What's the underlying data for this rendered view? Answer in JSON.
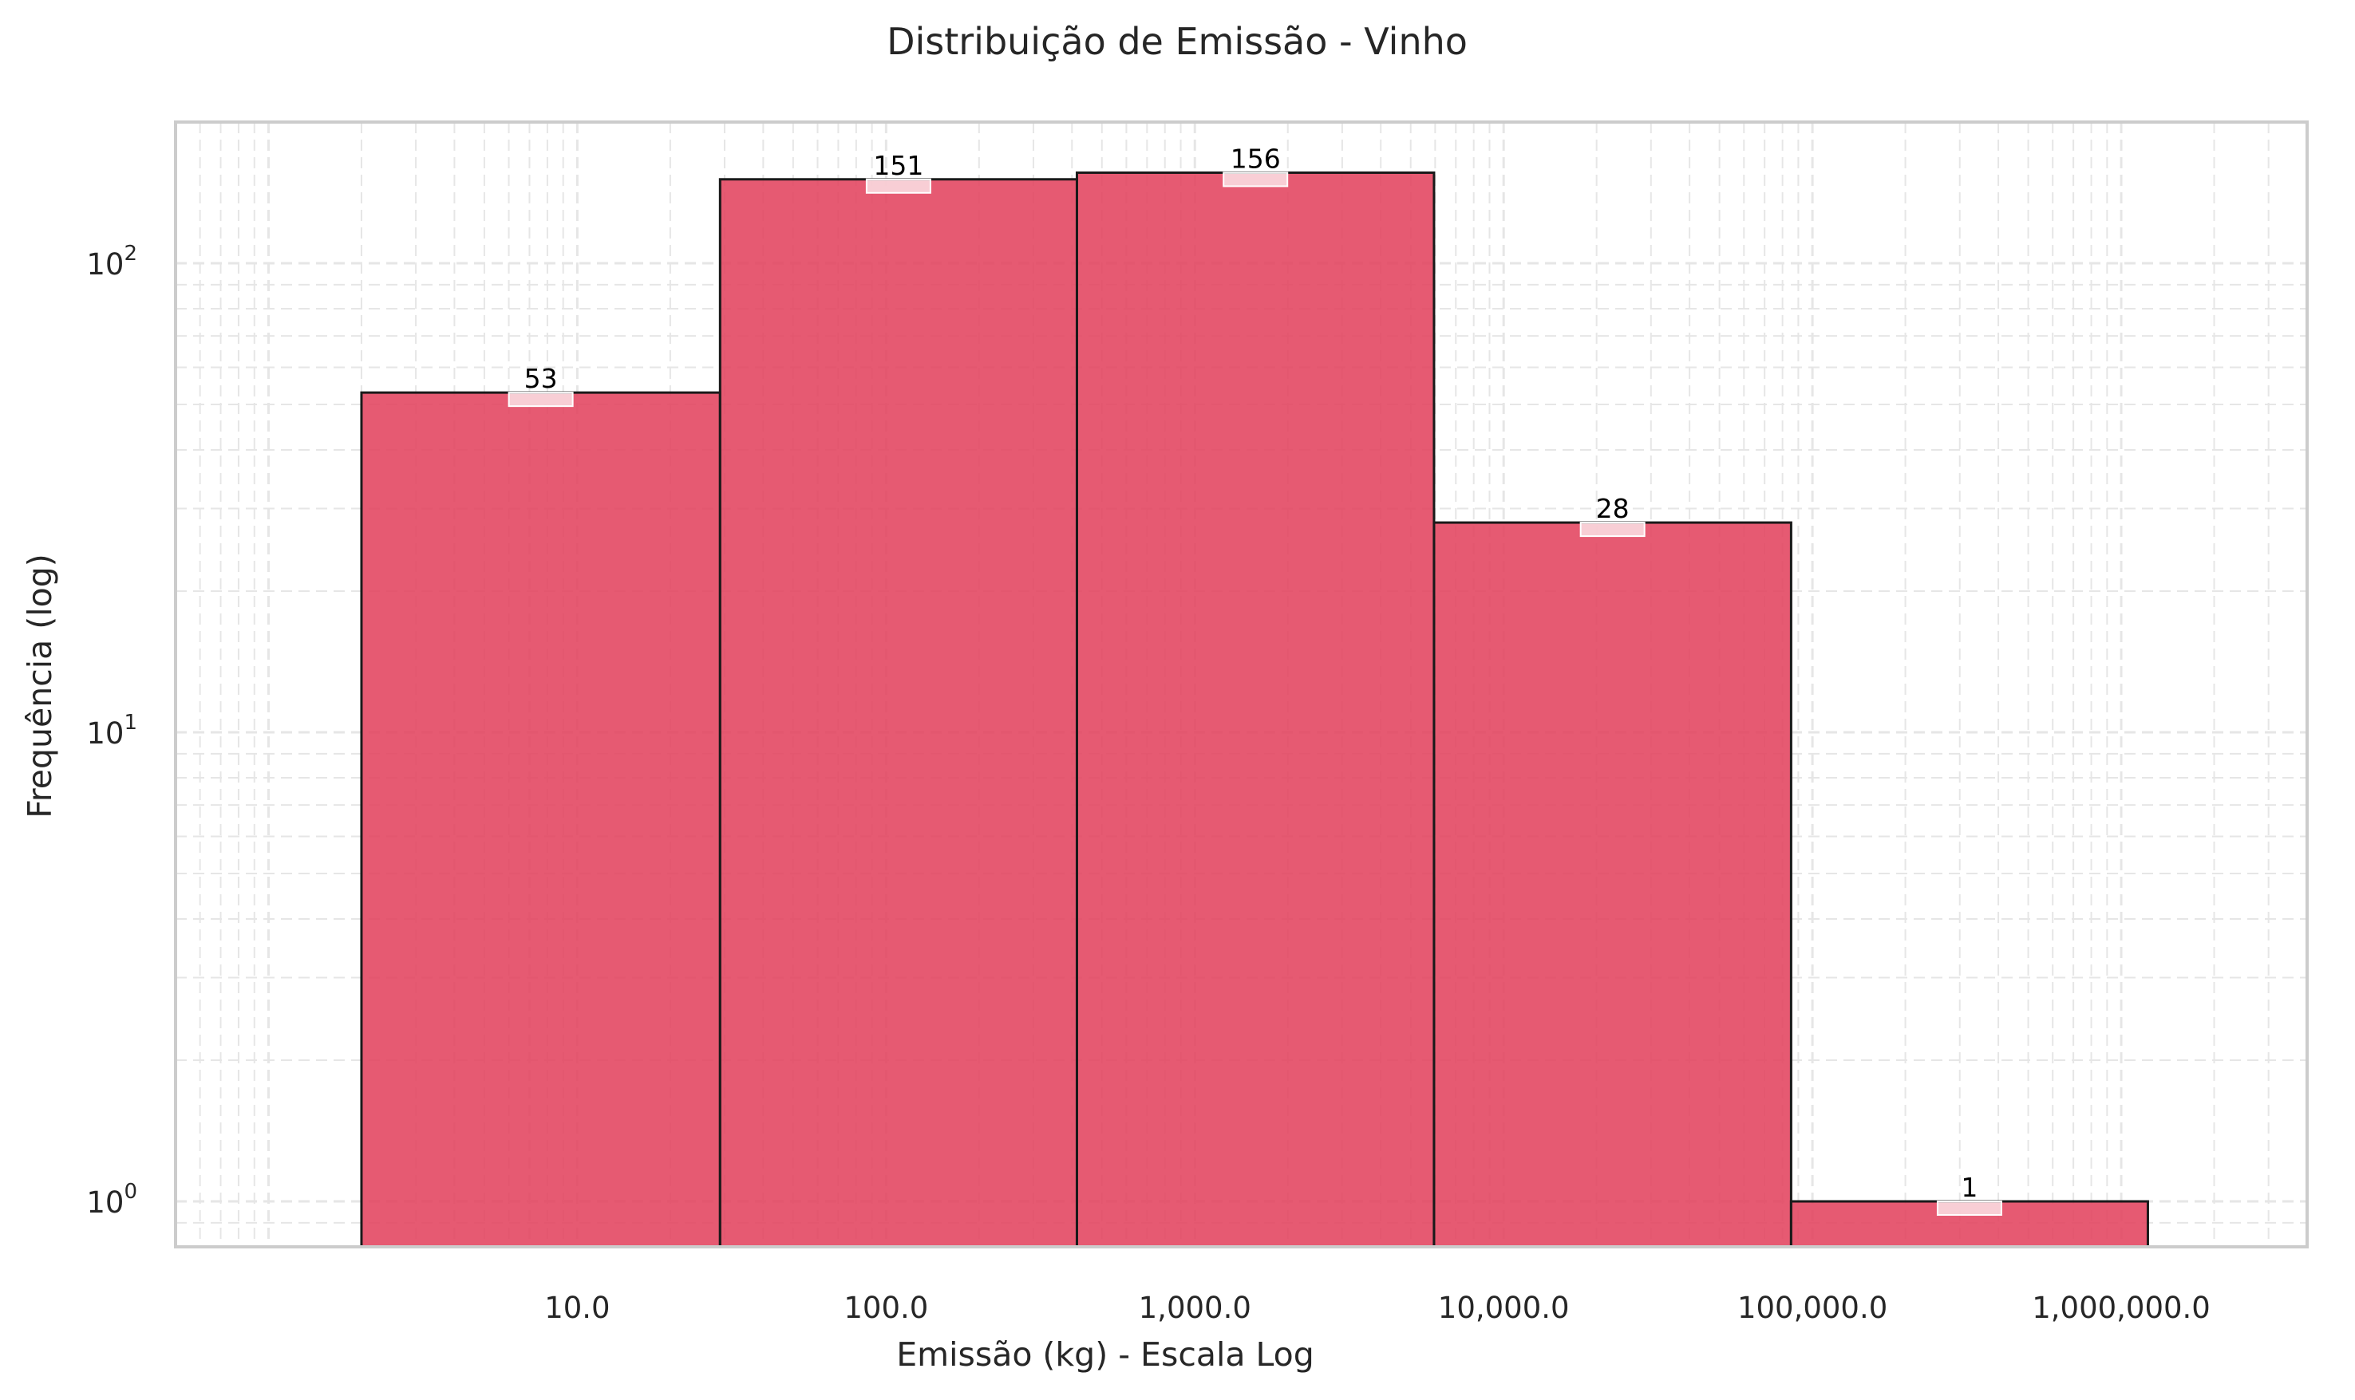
{
  "chart_data": {
    "type": "bar",
    "title": "Distribuição de Emissão - Vinho",
    "xlabel": "Emissão (kg) - Escala Log",
    "ylabel": "Frequência (log)",
    "x_scale": "log",
    "y_scale": "log",
    "xlim": [
      0.5,
      4000000
    ],
    "ylim": [
      0.8,
      200
    ],
    "x_tick_labels": [
      {
        "value": 10,
        "label": "10.0"
      },
      {
        "value": 100,
        "label": "100.0"
      },
      {
        "value": 1000,
        "label": "1,000.0"
      },
      {
        "value": 10000,
        "label": "10,000.0"
      },
      {
        "value": 100000,
        "label": "100,000.0"
      },
      {
        "value": 1000000,
        "label": "1,000,000.0"
      }
    ],
    "y_tick_labels": [
      {
        "value": 1,
        "base": "10",
        "exp": "0"
      },
      {
        "value": 10,
        "base": "10",
        "exp": "1"
      },
      {
        "value": 100,
        "base": "10",
        "exp": "2"
      }
    ],
    "bins": [
      {
        "x0": 2,
        "x1": 29,
        "count": 53,
        "label": "53"
      },
      {
        "x0": 29,
        "x1": 415,
        "count": 151,
        "label": "151"
      },
      {
        "x0": 415,
        "x1": 5950,
        "count": 156,
        "label": "156"
      },
      {
        "x0": 5950,
        "x1": 85300,
        "count": 28,
        "label": "28"
      },
      {
        "x0": 85300,
        "x1": 1220000,
        "count": 1,
        "label": "1"
      }
    ],
    "grid": true,
    "colors": {
      "bar": "#e3435e",
      "edge": "#1a1a1a",
      "grid": "#e6e6e6",
      "frame": "#cccccc"
    }
  }
}
